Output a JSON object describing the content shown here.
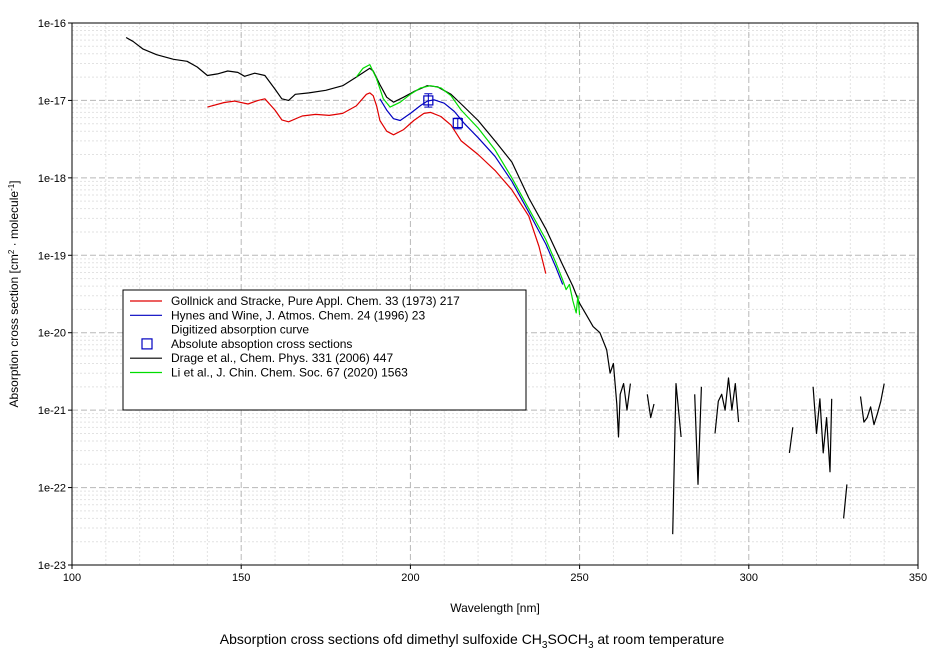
{
  "caption": {
    "prefix": "Absorption cross sections ofd dimethyl sulfoxide CH",
    "sub1": "3",
    "mid": "SOCH",
    "sub2": "3",
    "suffix": " at room temperature"
  },
  "chart_data": {
    "type": "line",
    "xlabel": "Wavelength [nm]",
    "ylabel_parts": {
      "base": "Absorption cross section [cm",
      "sup1": "2",
      "mid": " · molecule",
      "sup2": "-1",
      "end": "]"
    },
    "xlim": [
      100,
      350
    ],
    "ylim": [
      1e-23,
      1e-16
    ],
    "y_scale": "log",
    "grid": true,
    "x_ticks": [
      "100",
      "150",
      "200",
      "250",
      "300",
      "350"
    ],
    "y_ticks": [
      "1e-16",
      "1e-17",
      "1e-18",
      "1e-19",
      "1e-20",
      "1e-21",
      "1e-22",
      "1e-23"
    ],
    "legend_position": "lower-left",
    "legend": [
      {
        "label": "Gollnick and Stracke, Pure Appl. Chem. 33 (1973) 217",
        "color": "#e00000",
        "marker": "line"
      },
      {
        "label": "Hynes and Wine, J. Atmos. Chem. 24 (1996) 23",
        "color": "#0000c0",
        "marker": "line"
      },
      {
        "label": "Digitized absorption curve",
        "color": "#0000c0",
        "marker": "none"
      },
      {
        "label": "Absolute absoption cross sections",
        "color": "#0000c0",
        "marker": "square"
      },
      {
        "label": "Drage et al., Chem. Phys. 331 (2006) 447",
        "color": "#000000",
        "marker": "line"
      },
      {
        "label": "Li et al., J. Chin. Chem. Soc. 67 (2020) 1563",
        "color": "#00dd00",
        "marker": "line"
      }
    ],
    "series": [
      {
        "name": "Gollnick and Stracke, Pure Appl. Chem. 33 (1973) 217",
        "color": "#e00000",
        "segments": [
          [
            [
              140,
              8.2e-18
            ],
            [
              145,
              9.4e-18
            ],
            [
              148,
              9.8e-18
            ],
            [
              152,
              9e-18
            ],
            [
              155,
              1e-17
            ],
            [
              157,
              1.05e-17
            ],
            [
              160,
              7.5e-18
            ],
            [
              162,
              5.6e-18
            ],
            [
              164,
              5.3e-18
            ],
            [
              168,
              6.3e-18
            ],
            [
              172,
              6.6e-18
            ],
            [
              176,
              6.4e-18
            ],
            [
              180,
              6.8e-18
            ],
            [
              184,
              8.5e-18
            ],
            [
              187,
              1.2e-17
            ],
            [
              188,
              1.25e-17
            ],
            [
              189,
              1.15e-17
            ],
            [
              190,
              8.5e-18
            ],
            [
              191,
              5.5e-18
            ],
            [
              193,
              4e-18
            ],
            [
              195,
              3.6e-18
            ],
            [
              198,
              4.2e-18
            ],
            [
              201,
              5.5e-18
            ],
            [
              204,
              6.8e-18
            ],
            [
              206,
              7e-18
            ],
            [
              209,
              6.2e-18
            ],
            [
              212,
              4.8e-18
            ],
            [
              215,
              3e-18
            ],
            [
              220,
              2e-18
            ],
            [
              225,
              1.25e-18
            ],
            [
              230,
              7e-19
            ],
            [
              235,
              3.2e-19
            ],
            [
              238,
              1.3e-19
            ],
            [
              240,
              5.8e-20
            ]
          ]
        ]
      },
      {
        "name": "Hynes and Wine, J. Atmos. Chem. 24 (1996) 23",
        "color": "#0000c0",
        "segments": [
          [
            [
              191,
              1.05e-17
            ],
            [
              193,
              7.5e-18
            ],
            [
              195,
              5.8e-18
            ],
            [
              197,
              5.5e-18
            ],
            [
              200,
              6.8e-18
            ],
            [
              203,
              8.6e-18
            ],
            [
              205,
              9.8e-18
            ],
            [
              207,
              1.02e-17
            ],
            [
              210,
              9.2e-18
            ],
            [
              213,
              7.2e-18
            ],
            [
              216,
              5e-18
            ],
            [
              220,
              3.3e-18
            ],
            [
              225,
              1.9e-18
            ],
            [
              230,
              9e-19
            ],
            [
              235,
              3.6e-19
            ],
            [
              240,
              1.4e-19
            ],
            [
              243,
              7e-20
            ],
            [
              245,
              4.2e-20
            ]
          ]
        ]
      },
      {
        "name": "Drage et al., Chem. Phys. 331 (2006) 447",
        "color": "#000000",
        "segments": [
          [
            [
              116,
              6.5e-17
            ],
            [
              118,
              5.8e-17
            ],
            [
              121,
              4.6e-17
            ],
            [
              125,
              3.9e-17
            ],
            [
              130,
              3.4e-17
            ],
            [
              134,
              3.2e-17
            ],
            [
              137,
              2.7e-17
            ],
            [
              140,
              2.1e-17
            ],
            [
              143,
              2.2e-17
            ],
            [
              146,
              2.4e-17
            ],
            [
              149,
              2.3e-17
            ],
            [
              151,
              2.05e-17
            ],
            [
              154,
              2.25e-17
            ],
            [
              157,
              2.1e-17
            ],
            [
              160,
              1.4e-17
            ],
            [
              162,
              1.05e-17
            ],
            [
              164,
              1e-17
            ],
            [
              166,
              1.2e-17
            ],
            [
              170,
              1.25e-17
            ],
            [
              175,
              1.35e-17
            ],
            [
              180,
              1.55e-17
            ],
            [
              184,
              2e-17
            ],
            [
              188,
              2.6e-17
            ],
            [
              189,
              2.4e-17
            ],
            [
              191,
              1.6e-17
            ],
            [
              193,
              1.1e-17
            ],
            [
              195,
              9.5e-18
            ],
            [
              198,
              1.1e-17
            ],
            [
              201,
              1.3e-17
            ],
            [
              205,
              1.55e-17
            ],
            [
              208,
              1.5e-17
            ],
            [
              212,
              1.2e-17
            ],
            [
              215,
              9e-18
            ],
            [
              220,
              5.5e-18
            ],
            [
              225,
              3e-18
            ],
            [
              230,
              1.6e-18
            ],
            [
              235,
              5.5e-19
            ],
            [
              240,
              2.2e-19
            ],
            [
              245,
              7.5e-20
            ],
            [
              248,
              4e-20
            ],
            [
              250,
              2.4e-20
            ],
            [
              252,
              1.7e-20
            ],
            [
              254,
              1.2e-20
            ],
            [
              256,
              1e-20
            ],
            [
              258,
              6e-21
            ],
            [
              259,
              3e-21
            ],
            [
              260,
              4e-21
            ],
            [
              261,
              1.2e-21
            ],
            [
              261.5,
              4.5e-22
            ],
            [
              262,
              1.6e-21
            ],
            [
              263,
              2.2e-21
            ],
            [
              264,
              1e-21
            ],
            [
              265,
              2.2e-21
            ]
          ],
          [
            [
              270,
              1.6e-21
            ],
            [
              271,
              8e-22
            ],
            [
              272,
              1.2e-21
            ]
          ],
          [
            [
              277.5,
              2.5e-23
            ],
            [
              278.5,
              2.2e-21
            ],
            [
              280,
              4.5e-22
            ]
          ],
          [
            [
              284,
              1.6e-21
            ],
            [
              285,
              1.1e-22
            ],
            [
              286,
              2e-21
            ]
          ],
          [
            [
              290,
              5e-22
            ],
            [
              291,
              1.3e-21
            ],
            [
              292,
              1.6e-21
            ],
            [
              293,
              1e-21
            ],
            [
              294,
              2.6e-21
            ],
            [
              295,
              1e-21
            ],
            [
              296,
              2.2e-21
            ],
            [
              297,
              7e-22
            ]
          ],
          [
            [
              312,
              2.8e-22
            ],
            [
              313,
              6e-22
            ]
          ],
          [
            [
              319,
              2e-21
            ],
            [
              320,
              5e-22
            ],
            [
              321,
              1.4e-21
            ],
            [
              322,
              2.8e-22
            ],
            [
              323,
              8e-22
            ],
            [
              324,
              1.6e-22
            ],
            [
              324.5,
              1.4e-21
            ]
          ],
          [
            [
              328,
              4e-23
            ],
            [
              329,
              1.1e-22
            ]
          ],
          [
            [
              333,
              1.5e-21
            ],
            [
              334,
              7e-22
            ],
            [
              335,
              8e-22
            ],
            [
              336,
              1.1e-21
            ],
            [
              337,
              6.5e-22
            ],
            [
              338,
              9e-22
            ],
            [
              339,
              1.3e-21
            ],
            [
              340,
              2.2e-21
            ]
          ]
        ]
      },
      {
        "name": "Li et al., J. Chin. Chem. Soc. 67 (2020) 1563",
        "color": "#00dd00",
        "segments": [
          [
            [
              184,
              2e-17
            ],
            [
              186,
              2.6e-17
            ],
            [
              188,
              2.9e-17
            ],
            [
              190,
              1.9e-17
            ],
            [
              192,
              1.05e-17
            ],
            [
              194,
              8.2e-18
            ],
            [
              197,
              9.5e-18
            ],
            [
              200,
              1.2e-17
            ],
            [
              203,
              1.45e-17
            ],
            [
              206,
              1.55e-17
            ],
            [
              209,
              1.45e-17
            ],
            [
              212,
              1.15e-17
            ],
            [
              215,
              7.5e-18
            ],
            [
              220,
              4.4e-18
            ],
            [
              225,
              2.3e-18
            ],
            [
              230,
              1e-18
            ],
            [
              235,
              4e-19
            ],
            [
              240,
              1.6e-19
            ],
            [
              243,
              8e-20
            ],
            [
              245,
              4.8e-20
            ],
            [
              246,
              3.6e-20
            ],
            [
              247,
              4.2e-20
            ],
            [
              248,
              2.6e-20
            ],
            [
              249,
              1.8e-20
            ],
            [
              249.5,
              3e-20
            ],
            [
              250,
              1.7e-20
            ]
          ]
        ]
      }
    ],
    "points": {
      "name": "Absolute absoption cross sections",
      "color": "#0000c0",
      "data": [
        {
          "x": 205.3,
          "y": 1e-17,
          "err_low": 8.2e-18,
          "err_high": 1.22e-17
        },
        {
          "x": 214.0,
          "y": 5.1e-18,
          "err_low": 4.3e-18,
          "err_high": 5.9e-18
        }
      ]
    }
  }
}
